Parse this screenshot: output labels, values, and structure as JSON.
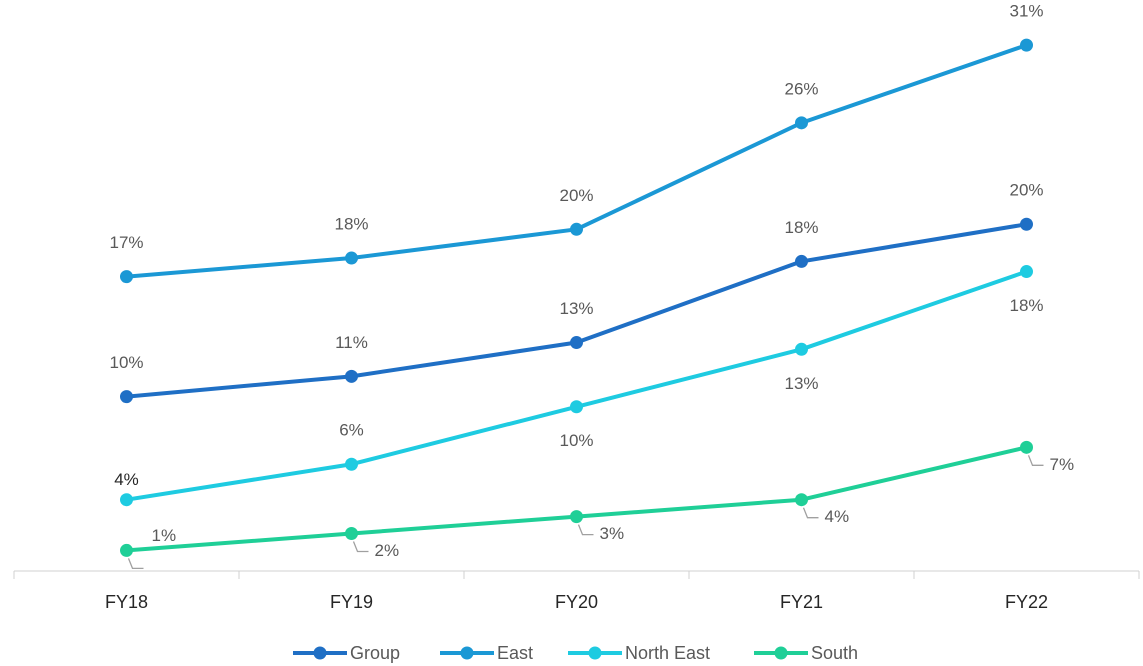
{
  "chart_data": {
    "type": "line",
    "categories": [
      "FY18",
      "FY19",
      "FY20",
      "FY21",
      "FY22"
    ],
    "series": [
      {
        "name": "Group",
        "color": "#1f6fc5",
        "values": [
          10.2,
          11.4,
          13.4,
          18.2,
          20.4
        ],
        "value_labels": [
          "10%",
          "11%",
          "13%",
          "18%",
          "20%"
        ]
      },
      {
        "name": "East",
        "color": "#1b98d5",
        "values": [
          17.3,
          18.4,
          20.1,
          26.4,
          31.0
        ],
        "value_labels": [
          "17%",
          "18%",
          "20%",
          "26%",
          "31%"
        ]
      },
      {
        "name": "North East",
        "color": "#1ecbe1",
        "values": [
          4.1,
          6.2,
          9.6,
          13.0,
          17.6
        ],
        "value_labels": [
          "4%",
          "6%",
          "10%",
          "13%",
          "18%"
        ]
      },
      {
        "name": "South",
        "color": "#1fcf97",
        "values": [
          1.1,
          2.1,
          3.1,
          4.1,
          7.2
        ],
        "value_labels": [
          "1%",
          "2%",
          "3%",
          "4%",
          "7%"
        ]
      }
    ]
  }
}
